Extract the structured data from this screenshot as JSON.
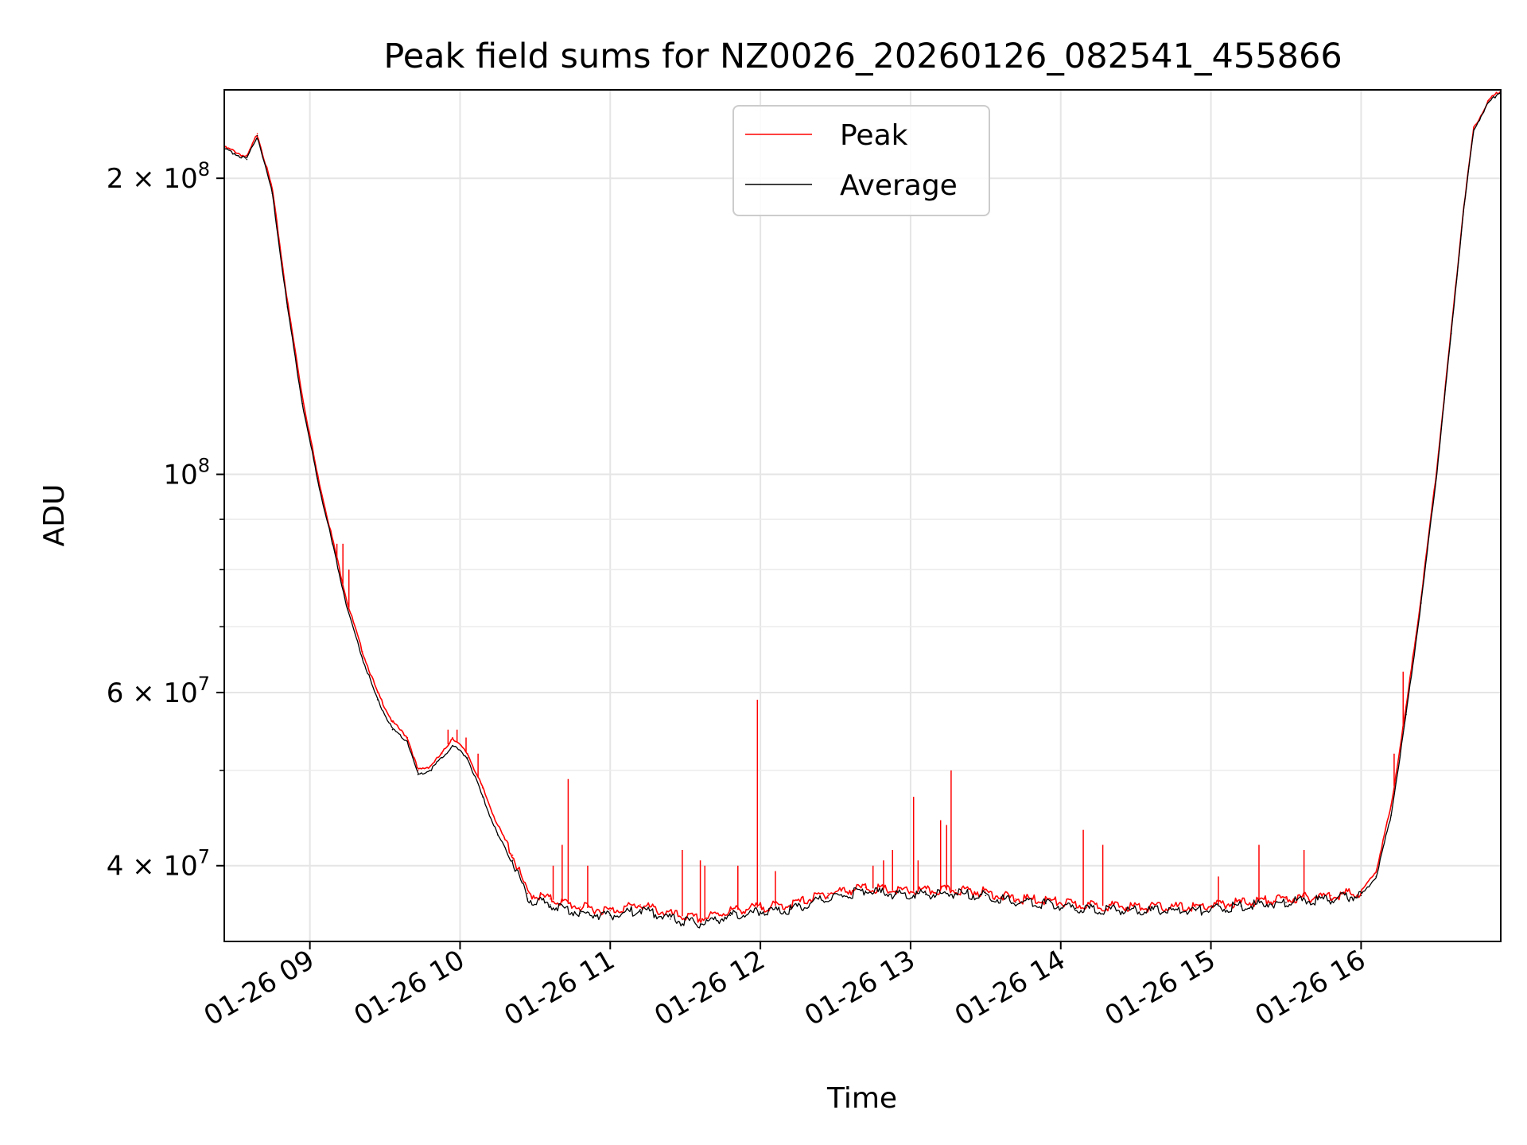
{
  "chart_data": {
    "type": "line",
    "title": "Peak field sums for NZ0026_20260126_082541_455866",
    "xlabel": "Time",
    "ylabel": "ADU",
    "yscale": "log",
    "xlim_hours": [
      8.43,
      16.93
    ],
    "ylim": [
      33500000,
      246000000
    ],
    "grid": true,
    "legend_position": "upper center",
    "x_ticks": [
      {
        "value": 9,
        "label": "01-26 09"
      },
      {
        "value": 10,
        "label": "01-26 10"
      },
      {
        "value": 11,
        "label": "01-26 11"
      },
      {
        "value": 12,
        "label": "01-26 12"
      },
      {
        "value": 13,
        "label": "01-26 13"
      },
      {
        "value": 14,
        "label": "01-26 14"
      },
      {
        "value": 15,
        "label": "01-26 15"
      },
      {
        "value": 16,
        "label": "01-26 16"
      }
    ],
    "y_major_ticks": [
      {
        "value": 40000000,
        "mantissa": "4",
        "base": "10",
        "exponent": "7",
        "prefix": "4 × "
      },
      {
        "value": 60000000,
        "mantissa": "6",
        "base": "10",
        "exponent": "7",
        "prefix": "6 × "
      },
      {
        "value": 100000000,
        "mantissa": "",
        "base": "10",
        "exponent": "8",
        "prefix": ""
      },
      {
        "value": 200000000,
        "mantissa": "2",
        "base": "10",
        "exponent": "8",
        "prefix": "2 × "
      }
    ],
    "y_minor_ticks": [
      50000000,
      70000000,
      80000000,
      90000000
    ],
    "series": [
      {
        "name": "Peak",
        "color": "#ff0000",
        "x": [
          8.43,
          8.5,
          8.58,
          8.65,
          8.75,
          8.85,
          8.95,
          9.05,
          9.15,
          9.25,
          9.35,
          9.45,
          9.55,
          9.65,
          9.72,
          9.8,
          9.88,
          9.95,
          10.05,
          10.15,
          10.25,
          10.35,
          10.45,
          10.6,
          10.8,
          11.0,
          11.2,
          11.4,
          11.6,
          11.8,
          12.0,
          12.2,
          12.45,
          12.7,
          12.9,
          13.1,
          13.3,
          13.5,
          13.7,
          13.9,
          14.1,
          14.3,
          14.6,
          14.9,
          15.2,
          15.5,
          15.8,
          16.0,
          16.1,
          16.2,
          16.3,
          16.4,
          16.5,
          16.6,
          16.68,
          16.75,
          16.85,
          16.93
        ],
        "y": [
          215000000,
          213000000,
          210000000,
          222000000,
          195000000,
          150000000,
          120000000,
          100000000,
          86000000,
          74000000,
          66000000,
          60000000,
          56000000,
          54000000,
          50000000,
          50500000,
          52000000,
          54000000,
          52000000,
          48000000,
          44000000,
          41000000,
          37500000,
          37000000,
          36300000,
          36000000,
          36500000,
          35700000,
          35300000,
          36000000,
          36300000,
          36500000,
          37500000,
          38000000,
          37700000,
          37700000,
          37800000,
          37600000,
          37000000,
          36900000,
          36500000,
          36400000,
          36300000,
          36300000,
          36700000,
          37000000,
          37300000,
          37600000,
          39500000,
          46000000,
          58000000,
          75000000,
          100000000,
          140000000,
          185000000,
          225000000,
          240000000,
          246000000
        ]
      },
      {
        "name": "Average",
        "color": "#000000",
        "x": [
          8.43,
          8.5,
          8.58,
          8.65,
          8.75,
          8.85,
          8.95,
          9.05,
          9.15,
          9.25,
          9.35,
          9.45,
          9.55,
          9.65,
          9.72,
          9.8,
          9.88,
          9.95,
          10.05,
          10.15,
          10.25,
          10.35,
          10.45,
          10.6,
          10.8,
          11.0,
          11.2,
          11.4,
          11.6,
          11.8,
          12.0,
          12.2,
          12.45,
          12.7,
          12.9,
          13.1,
          13.3,
          13.5,
          13.7,
          13.9,
          14.1,
          14.3,
          14.6,
          14.9,
          15.2,
          15.5,
          15.8,
          16.0,
          16.1,
          16.2,
          16.3,
          16.4,
          16.5,
          16.6,
          16.68,
          16.75,
          16.85,
          16.93
        ],
        "y": [
          214000000,
          212000000,
          209000000,
          221000000,
          193000000,
          148000000,
          118000000,
          99000000,
          85000000,
          73000000,
          65000000,
          59000000,
          55000000,
          53500000,
          49500000,
          50000000,
          51500000,
          53000000,
          51500000,
          47000000,
          43000000,
          40500000,
          37000000,
          36500000,
          35800000,
          35600000,
          36100000,
          35300000,
          34900000,
          35600000,
          35900000,
          36100000,
          37100000,
          37700000,
          37400000,
          37400000,
          37500000,
          37300000,
          36700000,
          36600000,
          36200000,
          36100000,
          36000000,
          36000000,
          36400000,
          36700000,
          37000000,
          37300000,
          39000000,
          45000000,
          57000000,
          74000000,
          99000000,
          139000000,
          184000000,
          224000000,
          239000000,
          245000000
        ]
      }
    ],
    "peak_spikes": [
      {
        "x": 9.18,
        "y": 85000000
      },
      {
        "x": 9.22,
        "y": 85000000
      },
      {
        "x": 9.26,
        "y": 80000000
      },
      {
        "x": 9.92,
        "y": 55000000
      },
      {
        "x": 9.98,
        "y": 55000000
      },
      {
        "x": 10.04,
        "y": 54000000
      },
      {
        "x": 10.12,
        "y": 52000000
      },
      {
        "x": 10.62,
        "y": 40000000
      },
      {
        "x": 10.68,
        "y": 42000000
      },
      {
        "x": 10.72,
        "y": 49000000
      },
      {
        "x": 10.85,
        "y": 40000000
      },
      {
        "x": 11.48,
        "y": 41500000
      },
      {
        "x": 11.6,
        "y": 40500000
      },
      {
        "x": 11.63,
        "y": 40000000
      },
      {
        "x": 11.85,
        "y": 40000000
      },
      {
        "x": 11.98,
        "y": 59000000
      },
      {
        "x": 12.1,
        "y": 39500000
      },
      {
        "x": 12.75,
        "y": 40000000
      },
      {
        "x": 12.82,
        "y": 40500000
      },
      {
        "x": 12.88,
        "y": 41500000
      },
      {
        "x": 13.02,
        "y": 47000000
      },
      {
        "x": 13.05,
        "y": 40500000
      },
      {
        "x": 13.2,
        "y": 44500000
      },
      {
        "x": 13.24,
        "y": 44000000
      },
      {
        "x": 13.27,
        "y": 50000000
      },
      {
        "x": 14.15,
        "y": 43500000
      },
      {
        "x": 14.28,
        "y": 42000000
      },
      {
        "x": 15.05,
        "y": 39000000
      },
      {
        "x": 15.32,
        "y": 42000000
      },
      {
        "x": 15.62,
        "y": 41500000
      },
      {
        "x": 16.22,
        "y": 52000000
      },
      {
        "x": 16.28,
        "y": 63000000
      }
    ]
  }
}
